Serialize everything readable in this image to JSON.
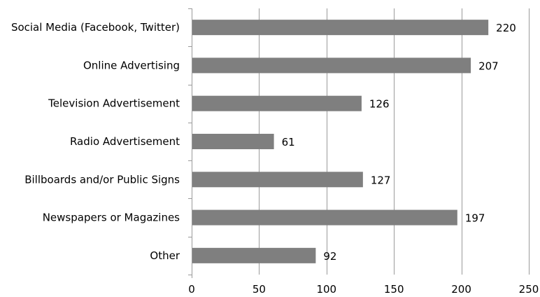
{
  "chart_data": {
    "type": "bar",
    "orientation": "horizontal",
    "categories": [
      "Social Media (Facebook, Twitter)",
      "Online Advertising",
      "Television Advertisement",
      "Radio Advertisement",
      "Billboards and/or Public Signs",
      "Newspapers or Magazines",
      "Other"
    ],
    "values": [
      220,
      207,
      126,
      61,
      127,
      197,
      92
    ],
    "xlim": [
      0,
      250
    ],
    "xticks": [
      0,
      50,
      100,
      150,
      200,
      250
    ],
    "title": "",
    "xlabel": "",
    "ylabel": "",
    "grid": true,
    "legend": false,
    "bar_color": "#7f7f7f",
    "grid_color": "#9a9a9a"
  }
}
